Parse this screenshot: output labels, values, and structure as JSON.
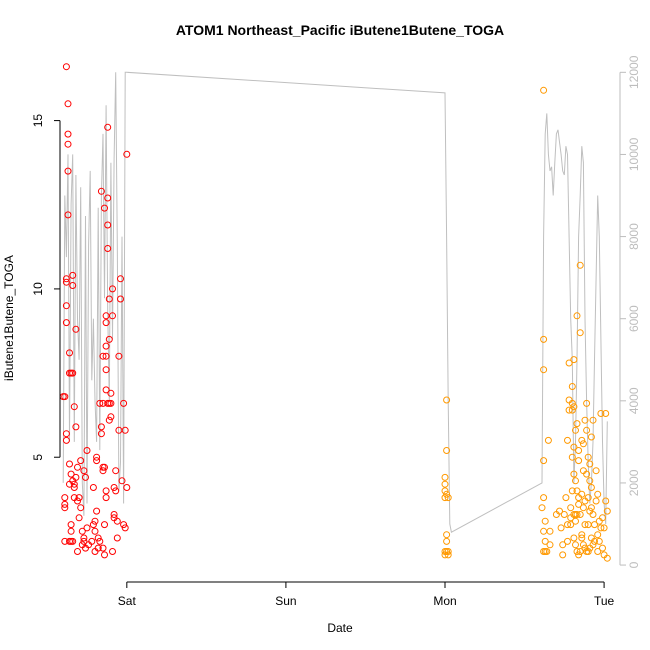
{
  "chart_data": {
    "type": "scatter",
    "title": "ATOM1 Northeast_Pacific iButene1Butene_TOGA",
    "xlabel": "Date",
    "ylabel": "iButene1Butene_TOGA",
    "x_ticks": [
      {
        "x": 2.0,
        "label": "Sat"
      },
      {
        "x": 3.0,
        "label": "Sun"
      },
      {
        "x": 4.0,
        "label": "Mon"
      },
      {
        "x": 5.0,
        "label": "Tue"
      }
    ],
    "xlim": [
      1.58,
      5.1
    ],
    "ylim": [
      1.65,
      16.8
    ],
    "y_ticks": [
      5,
      10,
      15
    ],
    "y2lim": [
      -120,
      12300
    ],
    "y2_ticks": [
      0,
      2000,
      4000,
      6000,
      8000,
      10000,
      12000
    ],
    "colors": {
      "red": "#ff0000",
      "orange": "#ff9900",
      "line": "#bfbfbf"
    },
    "series": [
      {
        "color": "red",
        "x": [
          1.6,
          1.61,
          1.61,
          1.61,
          1.61,
          1.61,
          1.62,
          1.62,
          1.62,
          1.62,
          1.62,
          1.62,
          1.62,
          1.63,
          1.63,
          1.63,
          1.63,
          1.63,
          1.64,
          1.64,
          1.64,
          1.64,
          1.64,
          1.65,
          1.65,
          1.65,
          1.65,
          1.65,
          1.66,
          1.66,
          1.66,
          1.66,
          1.66,
          1.67,
          1.67,
          1.67,
          1.67,
          1.68,
          1.68,
          1.68,
          1.69,
          1.69,
          1.69,
          1.7,
          1.7,
          1.71,
          1.71,
          1.72,
          1.72,
          1.73,
          1.73,
          1.73,
          1.74,
          1.74,
          1.75,
          1.75,
          1.76,
          1.78,
          1.79,
          1.79,
          1.8,
          1.8,
          1.8,
          1.81,
          1.81,
          1.81,
          1.82,
          1.82,
          1.83,
          1.83,
          1.84,
          1.84,
          1.84,
          1.85,
          1.85,
          1.85,
          1.85,
          1.85,
          1.86,
          1.86,
          1.86,
          1.86,
          1.87,
          1.87,
          1.87,
          1.87,
          1.87,
          1.87,
          1.87,
          1.87,
          1.88,
          1.88,
          1.88,
          1.88,
          1.88,
          1.89,
          1.89,
          1.89,
          1.89,
          1.9,
          1.9,
          1.9,
          1.91,
          1.91,
          1.91,
          1.92,
          1.92,
          1.92,
          1.93,
          1.93,
          1.94,
          1.94,
          1.95,
          1.95,
          1.96,
          1.96,
          1.97,
          1.98,
          1.98,
          1.99,
          1.99,
          2.0,
          2.0
        ],
        "y": [
          6.8,
          2.5,
          3.6,
          3.8,
          3.5,
          6.8,
          5.5,
          5.7,
          9.0,
          10.2,
          10.3,
          16.6,
          9.5,
          14.3,
          13.5,
          14.6,
          15.5,
          12.2,
          8.1,
          7.5,
          4.8,
          4.2,
          2.5,
          2.8,
          2.5,
          3.0,
          7.5,
          4.5,
          7.5,
          2.5,
          4.3,
          10.4,
          10.1,
          6.5,
          4.2,
          4.1,
          3.8,
          5.9,
          4.4,
          8.8,
          4.7,
          3.7,
          2.2,
          3.8,
          3.2,
          4.9,
          3.5,
          2.8,
          2.4,
          2.5,
          2.6,
          4.6,
          2.3,
          4.4,
          5.2,
          2.9,
          2.4,
          2.5,
          3.0,
          4.1,
          2.2,
          2.8,
          3.1,
          4.9,
          5.0,
          3.4,
          2.6,
          2.3,
          2.5,
          6.6,
          12.9,
          5.9,
          5.7,
          2.3,
          4.6,
          4.7,
          6.6,
          8.0,
          2.1,
          3.0,
          4.7,
          12.4,
          3.8,
          4.0,
          9.2,
          9.0,
          8.3,
          7.0,
          7.6,
          8.0,
          6.6,
          14.8,
          11.2,
          11.9,
          12.7,
          9.7,
          6.6,
          8.5,
          6.1,
          6.6,
          6.2,
          6.9,
          10.0,
          9.2,
          2.2,
          3.3,
          3.2,
          4.1,
          4.6,
          4.0,
          3.1,
          2.6,
          8.0,
          5.8,
          9.7,
          10.3,
          4.3,
          3.0,
          6.6,
          5.8,
          2.9,
          14.0,
          4.1
        ]
      },
      {
        "color": "orange",
        "x": [
          4.0,
          4.0,
          4.0,
          4.0,
          4.0,
          4.0,
          4.01,
          4.01,
          4.01,
          4.01,
          4.01,
          4.01,
          4.02,
          4.02,
          4.02,
          4.61,
          4.62,
          4.62,
          4.62,
          4.62,
          4.62,
          4.62,
          4.62,
          4.63,
          4.63,
          4.63,
          4.64,
          4.65,
          4.66,
          4.66,
          4.7,
          4.72,
          4.73,
          4.74,
          4.74,
          4.75,
          4.76,
          4.77,
          4.77,
          4.77,
          4.78,
          4.78,
          4.78,
          4.79,
          4.79,
          4.79,
          4.8,
          4.8,
          4.8,
          4.8,
          4.8,
          4.81,
          4.81,
          4.81,
          4.81,
          4.81,
          4.81,
          4.82,
          4.82,
          4.82,
          4.82,
          4.82,
          4.83,
          4.83,
          4.83,
          4.83,
          4.83,
          4.84,
          4.84,
          4.84,
          4.84,
          4.84,
          4.85,
          4.85,
          4.85,
          4.85,
          4.86,
          4.86,
          4.86,
          4.86,
          4.87,
          4.87,
          4.87,
          4.87,
          4.88,
          4.88,
          4.88,
          4.88,
          4.89,
          4.89,
          4.89,
          4.89,
          4.9,
          4.9,
          4.9,
          4.9,
          4.91,
          4.91,
          4.91,
          4.91,
          4.92,
          4.92,
          4.92,
          4.92,
          4.93,
          4.93,
          4.93,
          4.94,
          4.94,
          4.95,
          4.95,
          4.96,
          4.96,
          4.96,
          4.97,
          4.97,
          4.98,
          4.98,
          4.99,
          4.99,
          5.0,
          5.0,
          5.01,
          5.01,
          5.02,
          5.02
        ],
        "y": [
          3.8,
          4.0,
          4.2,
          4.4,
          2.2,
          2.1,
          2.5,
          2.7,
          3.9,
          5.2,
          6.7,
          2.2,
          3.8,
          2.2,
          2.1,
          3.5,
          3.8,
          4.9,
          7.6,
          8.5,
          2.2,
          2.8,
          15.9,
          2.2,
          3.1,
          2.5,
          2.2,
          5.5,
          2.8,
          2.4,
          3.3,
          3.4,
          2.9,
          2.1,
          2.4,
          3.3,
          3.8,
          5.5,
          2.5,
          3.0,
          6.4,
          6.7,
          7.8,
          3.0,
          3.2,
          3.5,
          4.0,
          5.0,
          6.4,
          6.6,
          7.1,
          3.3,
          2.6,
          4.5,
          5.3,
          6.5,
          7.9,
          3.3,
          2.4,
          3.1,
          4.3,
          5.8,
          2.2,
          3.3,
          6.0,
          9.2,
          4.0,
          2.1,
          3.8,
          4.9,
          3.6,
          5.2,
          2.2,
          3.3,
          10.7,
          8.7,
          3.9,
          2.7,
          5.5,
          2.6,
          2.4,
          3.5,
          4.6,
          5.4,
          2.3,
          3.0,
          3.7,
          6.1,
          2.2,
          4.5,
          6.6,
          5.8,
          2.2,
          3.0,
          3.8,
          5.0,
          2.3,
          3.4,
          4.3,
          4.8,
          2.6,
          3.5,
          4.1,
          5.6,
          2.4,
          3.3,
          6.1,
          2.5,
          3.0,
          3.7,
          4.6,
          2.2,
          2.7,
          3.9,
          2.5,
          3.1,
          2.9,
          6.3,
          2.3,
          3.2,
          2.1,
          2.9,
          3.7,
          6.3,
          2.0,
          3.4
        ]
      }
    ],
    "line_series": {
      "x": [
        1.6,
        1.61,
        1.62,
        1.63,
        1.64,
        1.65,
        1.66,
        1.67,
        1.68,
        1.69,
        1.7,
        1.71,
        1.72,
        1.73,
        1.74,
        1.75,
        1.76,
        1.77,
        1.78,
        1.79,
        1.8,
        1.81,
        1.82,
        1.83,
        1.84,
        1.85,
        1.86,
        1.87,
        1.88,
        1.89,
        1.9,
        1.91,
        1.92,
        1.93,
        1.94,
        1.95,
        1.96,
        1.97,
        1.98,
        1.99,
        2.0,
        4.0,
        4.01,
        4.02,
        4.03,
        4.04,
        4.61,
        4.62,
        4.63,
        4.64,
        4.65,
        4.66,
        4.67,
        4.68,
        4.69,
        4.7,
        4.71,
        4.72,
        4.73,
        4.74,
        4.75,
        4.76,
        4.77,
        4.78,
        4.79,
        4.8,
        4.81,
        4.82,
        4.83,
        4.84,
        4.85,
        4.86,
        4.87,
        4.88,
        4.89,
        4.9,
        4.91,
        4.92,
        4.93,
        4.94,
        4.95,
        4.96,
        4.97,
        4.98,
        4.99,
        5.0,
        5.01,
        5.02
      ],
      "y": [
        2000,
        9000,
        7500,
        10000,
        3000,
        8800,
        10000,
        3000,
        9500,
        6000,
        5000,
        9200,
        2000,
        1200,
        8500,
        1500,
        7800,
        9600,
        4500,
        6000,
        4000,
        3000,
        8700,
        2800,
        9000,
        10500,
        6500,
        11200,
        6200,
        4000,
        9800,
        5500,
        9900,
        12000,
        7800,
        1800,
        2500,
        8000,
        1500,
        12000,
        12000,
        11500,
        8000,
        4000,
        1000,
        800,
        2000,
        8000,
        10500,
        11000,
        10000,
        9600,
        9700,
        9000,
        9800,
        10500,
        10600,
        10300,
        10000,
        9600,
        9500,
        10200,
        10000,
        8000,
        6000,
        5000,
        2000,
        3000,
        5000,
        8000,
        9000,
        10200,
        9800,
        6000,
        4000,
        2500,
        1500,
        2000,
        3000,
        5000,
        7000,
        9000,
        8000,
        5500,
        3000,
        1500,
        1000,
        3500
      ]
    }
  }
}
